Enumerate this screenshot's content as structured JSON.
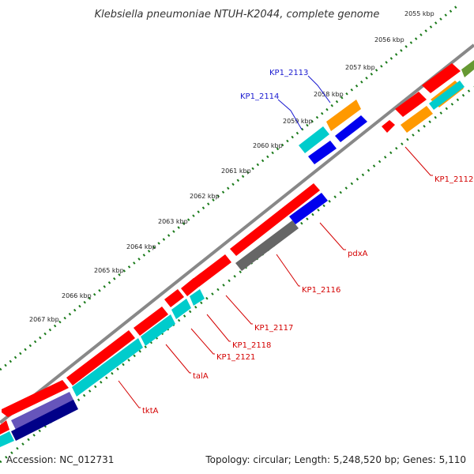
{
  "title": "Klebsiella pneumoniae NTUH-K2044, complete genome",
  "footer": {
    "accession": "Accession: NC_012731",
    "summary": "Topology: circular; Length: 5,248,520 bp; Genes: 5,110"
  },
  "ticks": [
    "2055 kbp",
    "2056 kbp",
    "2057 kbp",
    "2058 kbp",
    "2059 kbp",
    "2060 kbp",
    "2061 kbp",
    "2062 kbp",
    "2063 kbp",
    "2064 kbp",
    "2065 kbp",
    "2066 kbp",
    "2067 kbp"
  ],
  "labels": {
    "kp1_2113": "KP1_2113",
    "kp1_2114": "KP1_2114",
    "kp1_2112": "KP1_2112",
    "pdxa": "pdxA",
    "kp1_2116": "KP1_2116",
    "kp1_2117": "KP1_2117",
    "kp1_2118": "KP1_2118",
    "kp1_2121": "KP1_2121",
    "tala": "talA",
    "tkta": "tktA"
  },
  "colors": {
    "red": "#ff0000",
    "orange": "#ff9900",
    "cyan": "#00cccc",
    "blue": "#0000ee",
    "gray": "#666666",
    "olive": "#669933",
    "purple": "#6655bb",
    "navy": "#000088",
    "backbone": "#888888",
    "ruler": "#1a7a1a",
    "label_red": "#d40000",
    "label_blue": "#1a1ad0"
  }
}
